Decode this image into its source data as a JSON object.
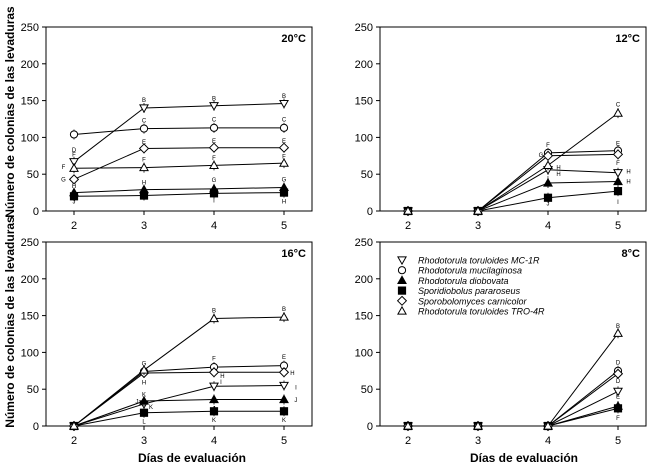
{
  "chart_data": [
    {
      "type": "line",
      "title": "20°C",
      "x": [
        2,
        3,
        4,
        5
      ],
      "xlim": [
        1.6,
        5.4
      ],
      "ylim": [
        0,
        250
      ],
      "yticks": [
        0,
        50,
        100,
        150,
        200,
        250
      ],
      "series": [
        {
          "name": "Rhodotorula toruloides MC-1R",
          "marker": "tri-down",
          "values": [
            67,
            140,
            143,
            146
          ]
        },
        {
          "name": "Rhodotorula mucilaginosa",
          "marker": "circle",
          "values": [
            104,
            112,
            113,
            113
          ]
        },
        {
          "name": "Rhodotorula diobovata",
          "marker": "tri-up-filled",
          "values": [
            25,
            29,
            30,
            32
          ]
        },
        {
          "name": "Sporidiobolus pararoseus",
          "marker": "square-filled",
          "values": [
            20,
            21,
            24,
            25
          ]
        },
        {
          "name": "Sporobolomyces carnicolor",
          "marker": "diamond",
          "values": [
            43,
            85,
            86,
            86
          ]
        },
        {
          "name": "Rhodotorula toruloides TRO-4R",
          "marker": "tri-up",
          "values": [
            58,
            59,
            62,
            65
          ]
        }
      ],
      "annotations": [
        {
          "x": 2,
          "y": 83,
          "text": "D"
        },
        {
          "x": 2,
          "y": 77,
          "text": "F"
        },
        {
          "x": 1.85,
          "y": 60,
          "text": "F"
        },
        {
          "x": 1.85,
          "y": 43,
          "text": "G"
        },
        {
          "x": 2,
          "y": 34,
          "text": "H"
        },
        {
          "x": 2,
          "y": 13,
          "text": "J"
        },
        {
          "x": 3,
          "y": 151,
          "text": "B"
        },
        {
          "x": 3,
          "y": 123,
          "text": "C"
        },
        {
          "x": 3,
          "y": 94,
          "text": "E"
        },
        {
          "x": 3,
          "y": 70,
          "text": "F"
        },
        {
          "x": 3,
          "y": 39,
          "text": "H"
        },
        {
          "x": 4,
          "y": 153,
          "text": "B"
        },
        {
          "x": 4,
          "y": 124,
          "text": "C"
        },
        {
          "x": 4,
          "y": 95,
          "text": "E"
        },
        {
          "x": 4,
          "y": 72,
          "text": "F"
        },
        {
          "x": 4,
          "y": 42,
          "text": "G"
        },
        {
          "x": 4,
          "y": 14,
          "text": "I"
        },
        {
          "x": 5,
          "y": 156,
          "text": "B"
        },
        {
          "x": 5,
          "y": 124,
          "text": "C"
        },
        {
          "x": 5,
          "y": 95,
          "text": "E"
        },
        {
          "x": 5,
          "y": 74,
          "text": "F"
        },
        {
          "x": 5,
          "y": 43,
          "text": "G"
        },
        {
          "x": 5,
          "y": 13,
          "text": "H"
        }
      ]
    },
    {
      "type": "line",
      "title": "12°C",
      "x": [
        2,
        3,
        4,
        5
      ],
      "xlim": [
        1.6,
        5.4
      ],
      "ylim": [
        0,
        250
      ],
      "yticks": [
        0,
        50,
        100,
        150,
        200,
        250
      ],
      "series": [
        {
          "name": "Rhodotorula toruloides MC-1R",
          "marker": "tri-down",
          "values": [
            0,
            0,
            56,
            52
          ]
        },
        {
          "name": "Rhodotorula mucilaginosa",
          "marker": "circle",
          "values": [
            0,
            0,
            79,
            82
          ]
        },
        {
          "name": "Rhodotorula diobovata",
          "marker": "tri-up-filled",
          "values": [
            0,
            0,
            38,
            40
          ]
        },
        {
          "name": "Sporidiobolus pararoseus",
          "marker": "square-filled",
          "values": [
            0,
            0,
            18,
            27
          ]
        },
        {
          "name": "Sporobolomyces carnicolor",
          "marker": "diamond",
          "values": [
            0,
            0,
            75,
            77
          ]
        },
        {
          "name": "Rhodotorula toruloides TRO-4R",
          "marker": "tri-up",
          "values": [
            0,
            0,
            62,
            133
          ]
        }
      ],
      "annotations": [
        {
          "x": 4,
          "y": 90,
          "text": "F"
        },
        {
          "x": 3.9,
          "y": 76,
          "text": "G"
        },
        {
          "x": 4.15,
          "y": 59,
          "text": "H"
        },
        {
          "x": 4.15,
          "y": 50,
          "text": "H"
        },
        {
          "x": 4,
          "y": 44,
          "text": "I"
        },
        {
          "x": 4,
          "y": 10,
          "text": "J"
        },
        {
          "x": 5,
          "y": 145,
          "text": "C"
        },
        {
          "x": 5,
          "y": 92,
          "text": "E"
        },
        {
          "x": 5,
          "y": 65,
          "text": "F"
        },
        {
          "x": 5.15,
          "y": 54,
          "text": "H"
        },
        {
          "x": 5.15,
          "y": 40,
          "text": "H"
        },
        {
          "x": 5,
          "y": 12,
          "text": "I"
        }
      ]
    },
    {
      "type": "line",
      "title": "16°C",
      "x": [
        2,
        3,
        4,
        5
      ],
      "xlim": [
        1.6,
        5.4
      ],
      "ylim": [
        0,
        250
      ],
      "yticks": [
        0,
        50,
        100,
        150,
        200,
        250
      ],
      "series": [
        {
          "name": "Rhodotorula toruloides MC-1R",
          "marker": "tri-down",
          "values": [
            0,
            30,
            54,
            55
          ]
        },
        {
          "name": "Rhodotorula mucilaginosa",
          "marker": "circle",
          "values": [
            0,
            74,
            80,
            82
          ]
        },
        {
          "name": "Rhodotorula diobovata",
          "marker": "tri-up-filled",
          "values": [
            0,
            34,
            36,
            36
          ]
        },
        {
          "name": "Sporidiobolus pararoseus",
          "marker": "square-filled",
          "values": [
            0,
            18,
            20,
            20
          ]
        },
        {
          "name": "Sporobolomyces carnicolor",
          "marker": "diamond",
          "values": [
            0,
            72,
            73,
            73
          ]
        },
        {
          "name": "Rhodotorula toruloides TRO-4R",
          "marker": "tri-up",
          "values": [
            0,
            76,
            146,
            148
          ]
        }
      ],
      "annotations": [
        {
          "x": 3,
          "y": 85,
          "text": "G"
        },
        {
          "x": 3,
          "y": 59,
          "text": "H"
        },
        {
          "x": 3,
          "y": 43,
          "text": "K"
        },
        {
          "x": 2.9,
          "y": 33,
          "text": "J"
        },
        {
          "x": 3.1,
          "y": 26,
          "text": "K"
        },
        {
          "x": 3,
          "y": 6,
          "text": "L"
        },
        {
          "x": 4,
          "y": 157,
          "text": "B"
        },
        {
          "x": 4,
          "y": 92,
          "text": "F"
        },
        {
          "x": 4.12,
          "y": 68,
          "text": "H"
        },
        {
          "x": 4.1,
          "y": 60,
          "text": "I"
        },
        {
          "x": 4,
          "y": 24,
          "text": "J"
        },
        {
          "x": 4,
          "y": 8,
          "text": "K"
        },
        {
          "x": 5,
          "y": 159,
          "text": "B"
        },
        {
          "x": 5,
          "y": 94,
          "text": "E"
        },
        {
          "x": 5.12,
          "y": 72,
          "text": "H"
        },
        {
          "x": 5.17,
          "y": 52,
          "text": "I"
        },
        {
          "x": 5.17,
          "y": 35,
          "text": "J"
        },
        {
          "x": 5,
          "y": 8,
          "text": "K"
        }
      ]
    },
    {
      "type": "line",
      "title": "8°C",
      "x": [
        2,
        3,
        4,
        5
      ],
      "xlim": [
        1.6,
        5.4
      ],
      "ylim": [
        0,
        250
      ],
      "yticks": [
        0,
        50,
        100,
        150,
        200,
        250
      ],
      "series": [
        {
          "name": "Rhodotorula toruloides MC-1R",
          "marker": "tri-down",
          "values": [
            0,
            0,
            0,
            47
          ]
        },
        {
          "name": "Rhodotorula mucilaginosa",
          "marker": "circle",
          "values": [
            0,
            0,
            0,
            75
          ]
        },
        {
          "name": "Rhodotorula diobovata",
          "marker": "tri-up-filled",
          "values": [
            0,
            0,
            0,
            27
          ]
        },
        {
          "name": "Sporidiobolus pararoseus",
          "marker": "square-filled",
          "values": [
            0,
            0,
            0,
            24
          ]
        },
        {
          "name": "Sporobolomyces carnicolor",
          "marker": "diamond",
          "values": [
            0,
            0,
            0,
            71
          ]
        },
        {
          "name": "Rhodotorula toruloides TRO-4R",
          "marker": "tri-up",
          "values": [
            0,
            0,
            0,
            126
          ]
        }
      ],
      "annotations": [
        {
          "x": 5,
          "y": 136,
          "text": "B"
        },
        {
          "x": 5,
          "y": 86,
          "text": "D"
        },
        {
          "x": 5,
          "y": 61,
          "text": "D"
        },
        {
          "x": 5,
          "y": 40,
          "text": "E"
        },
        {
          "x": 5,
          "y": 11,
          "text": "F"
        }
      ]
    }
  ],
  "labels": {
    "ylabel_top": "Número de colonias de las levaduras",
    "ylabel_bottom": "Número de colonias de las levaduras",
    "xlabel_left": "Días de evaluación",
    "xlabel_right": "Días de evaluación"
  },
  "legend": [
    {
      "marker": "tri-down",
      "label": "Rhodotorula toruloides MC-1R"
    },
    {
      "marker": "circle",
      "label": "Rhodotorula mucilaginosa"
    },
    {
      "marker": "tri-up-filled",
      "label": "Rhodotorula diobovata"
    },
    {
      "marker": "square-filled",
      "label": "Sporidiobolus pararoseus"
    },
    {
      "marker": "diamond",
      "label": "Sporobolomyces carnicolor"
    },
    {
      "marker": "tri-up",
      "label": "Rhodotorula toruloides TRO-4R"
    }
  ]
}
